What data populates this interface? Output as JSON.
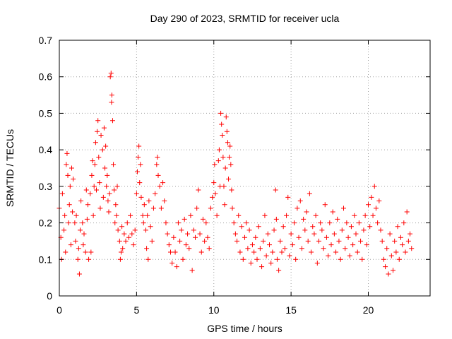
{
  "chart_data": {
    "type": "scatter",
    "title": "Day 290 of 2023, SRMTID for receiver ucla",
    "xlabel": "GPS time / hours",
    "ylabel": "SRMTID / TECUs",
    "xlim": [
      0,
      24
    ],
    "ylim": [
      0,
      0.7
    ],
    "xticks": [
      "0",
      "5",
      "10",
      "15",
      "20"
    ],
    "yticks": [
      "0",
      "0.1",
      "0.2",
      "0.3",
      "0.4",
      "0.5",
      "0.6",
      "0.7"
    ],
    "grid": true,
    "marker": "+",
    "color": "#ff0000",
    "series": [
      {
        "name": "SRMTID",
        "points": [
          [
            0.0,
            0.24
          ],
          [
            0.1,
            0.16
          ],
          [
            0.15,
            0.1
          ],
          [
            0.2,
            0.28
          ],
          [
            0.3,
            0.18
          ],
          [
            0.35,
            0.22
          ],
          [
            0.4,
            0.12
          ],
          [
            0.45,
            0.36
          ],
          [
            0.5,
            0.39
          ],
          [
            0.55,
            0.33
          ],
          [
            0.6,
            0.2
          ],
          [
            0.65,
            0.25
          ],
          [
            0.7,
            0.3
          ],
          [
            0.75,
            0.14
          ],
          [
            0.8,
            0.35
          ],
          [
            0.85,
            0.23
          ],
          [
            0.9,
            0.32
          ],
          [
            1.0,
            0.2
          ],
          [
            1.05,
            0.15
          ],
          [
            1.1,
            0.22
          ],
          [
            1.2,
            0.1
          ],
          [
            1.25,
            0.13
          ],
          [
            1.3,
            0.06
          ],
          [
            1.35,
            0.18
          ],
          [
            1.4,
            0.26
          ],
          [
            1.5,
            0.2
          ],
          [
            1.55,
            0.14
          ],
          [
            1.6,
            0.17
          ],
          [
            1.7,
            0.12
          ],
          [
            1.75,
            0.29
          ],
          [
            1.8,
            0.21
          ],
          [
            1.85,
            0.25
          ],
          [
            1.9,
            0.1
          ],
          [
            2.0,
            0.28
          ],
          [
            2.05,
            0.12
          ],
          [
            2.1,
            0.33
          ],
          [
            2.15,
            0.37
          ],
          [
            2.2,
            0.22
          ],
          [
            2.25,
            0.3
          ],
          [
            2.3,
            0.36
          ],
          [
            2.35,
            0.42
          ],
          [
            2.4,
            0.29
          ],
          [
            2.45,
            0.45
          ],
          [
            2.5,
            0.48
          ],
          [
            2.55,
            0.38
          ],
          [
            2.6,
            0.31
          ],
          [
            2.65,
            0.24
          ],
          [
            2.7,
            0.44
          ],
          [
            2.8,
            0.4
          ],
          [
            2.85,
            0.27
          ],
          [
            2.9,
            0.46
          ],
          [
            2.95,
            0.35
          ],
          [
            3.0,
            0.41
          ],
          [
            3.05,
            0.3
          ],
          [
            3.1,
            0.33
          ],
          [
            3.15,
            0.26
          ],
          [
            3.2,
            0.23
          ],
          [
            3.25,
            0.28
          ],
          [
            3.3,
            0.6
          ],
          [
            3.35,
            0.61
          ],
          [
            3.38,
            0.53
          ],
          [
            3.4,
            0.55
          ],
          [
            3.45,
            0.48
          ],
          [
            3.5,
            0.36
          ],
          [
            3.55,
            0.29
          ],
          [
            3.6,
            0.2
          ],
          [
            3.65,
            0.25
          ],
          [
            3.7,
            0.22
          ],
          [
            3.75,
            0.3
          ],
          [
            3.8,
            0.18
          ],
          [
            3.9,
            0.15
          ],
          [
            3.95,
            0.1
          ],
          [
            4.0,
            0.12
          ],
          [
            4.05,
            0.19
          ],
          [
            4.1,
            0.13
          ],
          [
            4.2,
            0.17
          ],
          [
            4.3,
            0.15
          ],
          [
            4.4,
            0.2
          ],
          [
            4.5,
            0.16
          ],
          [
            4.6,
            0.22
          ],
          [
            4.7,
            0.17
          ],
          [
            4.8,
            0.14
          ],
          [
            4.9,
            0.18
          ],
          [
            5.0,
            0.28
          ],
          [
            5.05,
            0.34
          ],
          [
            5.1,
            0.38
          ],
          [
            5.15,
            0.41
          ],
          [
            5.2,
            0.31
          ],
          [
            5.25,
            0.36
          ],
          [
            5.3,
            0.27
          ],
          [
            5.4,
            0.22
          ],
          [
            5.45,
            0.2
          ],
          [
            5.5,
            0.25
          ],
          [
            5.6,
            0.18
          ],
          [
            5.65,
            0.13
          ],
          [
            5.7,
            0.22
          ],
          [
            5.75,
            0.1
          ],
          [
            5.8,
            0.26
          ],
          [
            5.9,
            0.19
          ],
          [
            6.0,
            0.15
          ],
          [
            6.1,
            0.24
          ],
          [
            6.2,
            0.28
          ],
          [
            6.3,
            0.36
          ],
          [
            6.35,
            0.38
          ],
          [
            6.4,
            0.33
          ],
          [
            6.5,
            0.3
          ],
          [
            6.6,
            0.24
          ],
          [
            6.7,
            0.31
          ],
          [
            6.8,
            0.26
          ],
          [
            6.9,
            0.2
          ],
          [
            7.0,
            0.17
          ],
          [
            7.1,
            0.14
          ],
          [
            7.2,
            0.12
          ],
          [
            7.3,
            0.09
          ],
          [
            7.4,
            0.16
          ],
          [
            7.5,
            0.12
          ],
          [
            7.6,
            0.08
          ],
          [
            7.7,
            0.2
          ],
          [
            7.8,
            0.15
          ],
          [
            7.9,
            0.18
          ],
          [
            8.0,
            0.1
          ],
          [
            8.1,
            0.21
          ],
          [
            8.2,
            0.14
          ],
          [
            8.3,
            0.17
          ],
          [
            8.4,
            0.13
          ],
          [
            8.5,
            0.22
          ],
          [
            8.6,
            0.07
          ],
          [
            8.7,
            0.18
          ],
          [
            8.8,
            0.16
          ],
          [
            8.9,
            0.24
          ],
          [
            9.0,
            0.29
          ],
          [
            9.1,
            0.17
          ],
          [
            9.2,
            0.12
          ],
          [
            9.3,
            0.21
          ],
          [
            9.4,
            0.15
          ],
          [
            9.5,
            0.2
          ],
          [
            9.6,
            0.16
          ],
          [
            9.7,
            0.13
          ],
          [
            9.8,
            0.24
          ],
          [
            9.9,
            0.27
          ],
          [
            10.0,
            0.31
          ],
          [
            10.05,
            0.36
          ],
          [
            10.1,
            0.28
          ],
          [
            10.2,
            0.22
          ],
          [
            10.3,
            0.37
          ],
          [
            10.35,
            0.4
          ],
          [
            10.4,
            0.3
          ],
          [
            10.45,
            0.5
          ],
          [
            10.5,
            0.47
          ],
          [
            10.55,
            0.44
          ],
          [
            10.6,
            0.38
          ],
          [
            10.65,
            0.3
          ],
          [
            10.7,
            0.25
          ],
          [
            10.75,
            0.35
          ],
          [
            10.8,
            0.49
          ],
          [
            10.85,
            0.45
          ],
          [
            10.9,
            0.42
          ],
          [
            10.95,
            0.32
          ],
          [
            11.0,
            0.38
          ],
          [
            11.05,
            0.41
          ],
          [
            11.1,
            0.36
          ],
          [
            11.15,
            0.29
          ],
          [
            11.2,
            0.24
          ],
          [
            11.3,
            0.2
          ],
          [
            11.4,
            0.17
          ],
          [
            11.5,
            0.15
          ],
          [
            11.6,
            0.22
          ],
          [
            11.7,
            0.12
          ],
          [
            11.8,
            0.19
          ],
          [
            11.9,
            0.1
          ],
          [
            12.0,
            0.16
          ],
          [
            12.1,
            0.2
          ],
          [
            12.2,
            0.13
          ],
          [
            12.3,
            0.18
          ],
          [
            12.4,
            0.09
          ],
          [
            12.5,
            0.14
          ],
          [
            12.6,
            0.12
          ],
          [
            12.7,
            0.16
          ],
          [
            12.8,
            0.1
          ],
          [
            12.9,
            0.19
          ],
          [
            13.0,
            0.13
          ],
          [
            13.1,
            0.08
          ],
          [
            13.2,
            0.15
          ],
          [
            13.3,
            0.22
          ],
          [
            13.4,
            0.11
          ],
          [
            13.5,
            0.17
          ],
          [
            13.6,
            0.14
          ],
          [
            13.7,
            0.09
          ],
          [
            13.8,
            0.12
          ],
          [
            13.9,
            0.18
          ],
          [
            14.0,
            0.29
          ],
          [
            14.05,
            0.21
          ],
          [
            14.1,
            0.1
          ],
          [
            14.2,
            0.07
          ],
          [
            14.3,
            0.15
          ],
          [
            14.4,
            0.12
          ],
          [
            14.5,
            0.19
          ],
          [
            14.6,
            0.13
          ],
          [
            14.7,
            0.22
          ],
          [
            14.8,
            0.27
          ],
          [
            14.9,
            0.11
          ],
          [
            15.0,
            0.17
          ],
          [
            15.1,
            0.14
          ],
          [
            15.2,
            0.2
          ],
          [
            15.3,
            0.1
          ],
          [
            15.4,
            0.24
          ],
          [
            15.5,
            0.16
          ],
          [
            15.6,
            0.26
          ],
          [
            15.7,
            0.13
          ],
          [
            15.8,
            0.21
          ],
          [
            15.9,
            0.18
          ],
          [
            16.0,
            0.23
          ],
          [
            16.1,
            0.15
          ],
          [
            16.2,
            0.28
          ],
          [
            16.3,
            0.12
          ],
          [
            16.4,
            0.19
          ],
          [
            16.5,
            0.17
          ],
          [
            16.6,
            0.22
          ],
          [
            16.7,
            0.09
          ],
          [
            16.8,
            0.15
          ],
          [
            16.9,
            0.2
          ],
          [
            17.0,
            0.18
          ],
          [
            17.1,
            0.13
          ],
          [
            17.2,
            0.25
          ],
          [
            17.3,
            0.16
          ],
          [
            17.4,
            0.11
          ],
          [
            17.5,
            0.2
          ],
          [
            17.6,
            0.14
          ],
          [
            17.7,
            0.23
          ],
          [
            17.8,
            0.17
          ],
          [
            17.9,
            0.12
          ],
          [
            18.0,
            0.21
          ],
          [
            18.1,
            0.15
          ],
          [
            18.2,
            0.1
          ],
          [
            18.3,
            0.18
          ],
          [
            18.4,
            0.24
          ],
          [
            18.5,
            0.13
          ],
          [
            18.6,
            0.2
          ],
          [
            18.7,
            0.16
          ],
          [
            18.8,
            0.11
          ],
          [
            18.9,
            0.19
          ],
          [
            19.0,
            0.14
          ],
          [
            19.1,
            0.22
          ],
          [
            19.2,
            0.17
          ],
          [
            19.3,
            0.12
          ],
          [
            19.4,
            0.2
          ],
          [
            19.5,
            0.15
          ],
          [
            19.6,
            0.1
          ],
          [
            19.7,
            0.18
          ],
          [
            19.8,
            0.22
          ],
          [
            19.9,
            0.14
          ],
          [
            20.0,
            0.25
          ],
          [
            20.1,
            0.19
          ],
          [
            20.2,
            0.27
          ],
          [
            20.3,
            0.22
          ],
          [
            20.4,
            0.3
          ],
          [
            20.5,
            0.24
          ],
          [
            20.6,
            0.2
          ],
          [
            20.7,
            0.26
          ],
          [
            20.8,
            0.18
          ],
          [
            20.9,
            0.15
          ],
          [
            21.0,
            0.1
          ],
          [
            21.1,
            0.08
          ],
          [
            21.2,
            0.13
          ],
          [
            21.3,
            0.06
          ],
          [
            21.4,
            0.17
          ],
          [
            21.5,
            0.11
          ],
          [
            21.6,
            0.07
          ],
          [
            21.7,
            0.15
          ],
          [
            21.8,
            0.12
          ],
          [
            21.9,
            0.19
          ],
          [
            22.0,
            0.1
          ],
          [
            22.1,
            0.16
          ],
          [
            22.2,
            0.14
          ],
          [
            22.3,
            0.2
          ],
          [
            22.4,
            0.12
          ],
          [
            22.5,
            0.23
          ],
          [
            22.6,
            0.15
          ],
          [
            22.7,
            0.17
          ],
          [
            22.8,
            0.13
          ]
        ]
      }
    ]
  }
}
